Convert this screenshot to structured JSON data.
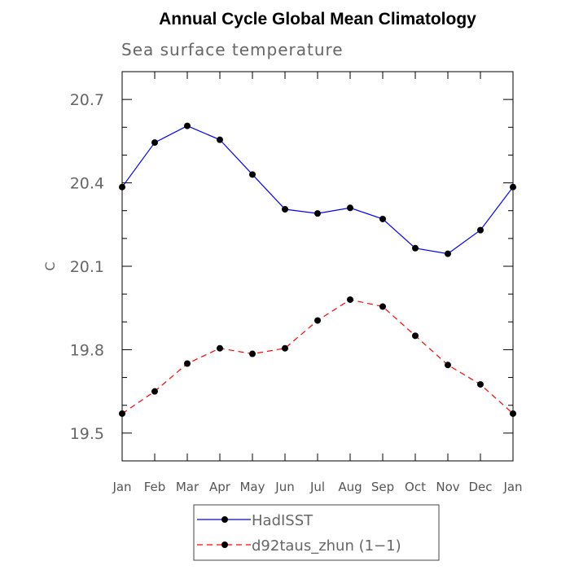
{
  "chart_data": {
    "type": "line",
    "title": "Annual Cycle Global Mean Climatology",
    "subtitle": "Sea surface temperature",
    "xlabel": "",
    "ylabel": "C",
    "categories": [
      "Jan",
      "Feb",
      "Mar",
      "Apr",
      "May",
      "Jun",
      "Jul",
      "Aug",
      "Sep",
      "Oct",
      "Nov",
      "Dec",
      "Jan"
    ],
    "ylim": [
      19.4,
      20.8
    ],
    "yticks": [
      19.5,
      19.8,
      20.1,
      20.4,
      20.7
    ],
    "ytick_labels": [
      "19.5",
      "19.8",
      "20.1",
      "20.4",
      "20.7"
    ],
    "grid": false,
    "legend_position": "bottom",
    "series": [
      {
        "name": "HadISST",
        "color": "#0000ff",
        "dash": "solid",
        "values": [
          20.385,
          20.545,
          20.605,
          20.555,
          20.43,
          20.305,
          20.29,
          20.31,
          20.27,
          20.165,
          20.145,
          20.23,
          20.385
        ]
      },
      {
        "name": "d92taus_zhun (1−1)",
        "color": "#ff0000",
        "dash": "dashed",
        "values": [
          19.57,
          19.65,
          19.75,
          19.805,
          19.785,
          19.805,
          19.905,
          19.98,
          19.955,
          19.85,
          19.745,
          19.675,
          19.57
        ]
      }
    ]
  }
}
